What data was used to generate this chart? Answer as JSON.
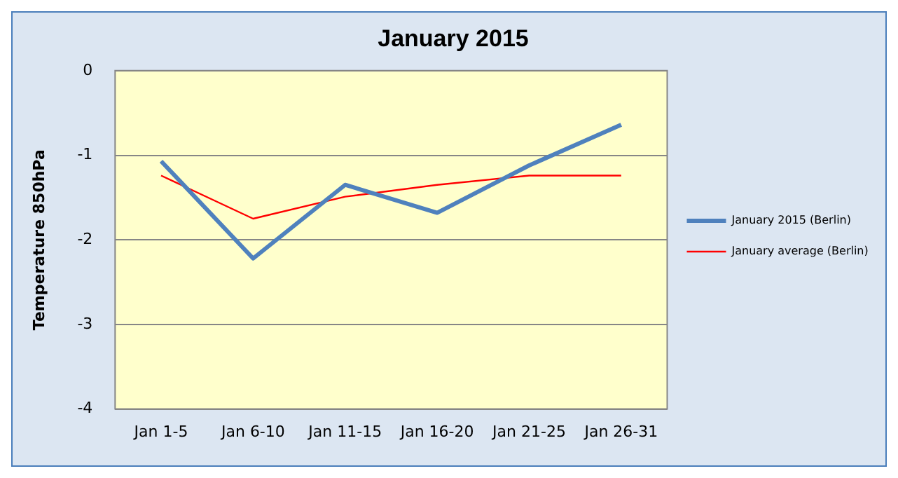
{
  "chart_data": {
    "type": "line",
    "title": "January 2015",
    "ylabel": "Temperature 850hPa",
    "categories": [
      "Jan 1-5",
      "Jan 6-10",
      "Jan 11-15",
      "Jan 16-20",
      "Jan 21-25",
      "Jan 26-31"
    ],
    "series": [
      {
        "name": "January 2015 (Berlin)",
        "color": "#4f81bd",
        "values": [
          -1.07,
          -2.22,
          -1.35,
          -1.68,
          -1.12,
          -0.64
        ]
      },
      {
        "name": "January average (Berlin)",
        "color": "#ff0000",
        "values": [
          -1.24,
          -1.75,
          -1.49,
          -1.35,
          -1.24,
          -1.24
        ]
      }
    ],
    "ylim": [
      -4,
      0
    ],
    "yticks": [
      -4,
      -3,
      -2,
      -1,
      0
    ],
    "grid": "y",
    "legend": "right",
    "marker": "none"
  }
}
